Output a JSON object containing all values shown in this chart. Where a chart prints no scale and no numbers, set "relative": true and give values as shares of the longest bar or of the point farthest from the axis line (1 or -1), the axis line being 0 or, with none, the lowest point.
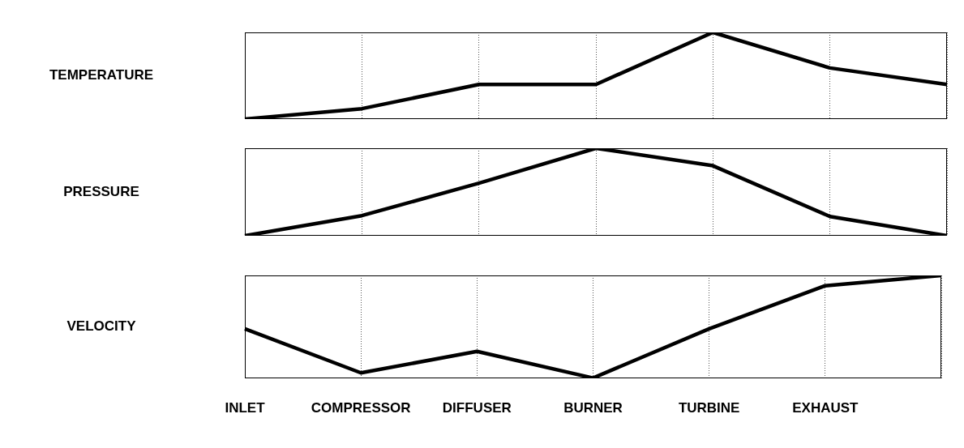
{
  "chart_data": [
    {
      "type": "line",
      "ylabel": "TEMPERATURE",
      "categories": [
        null,
        null,
        null,
        null,
        null,
        null,
        null
      ],
      "relative": true,
      "tick_labels": false,
      "grid": "x",
      "series": [
        {
          "color": "#000000",
          "values": [
            0,
            0.12,
            0.4,
            0.4,
            1,
            0.59,
            0.4
          ]
        }
      ]
    },
    {
      "type": "line",
      "ylabel": "PRESSURE",
      "categories": [
        null,
        null,
        null,
        null,
        null,
        null,
        null
      ],
      "relative": true,
      "tick_labels": false,
      "grid": "x",
      "series": [
        {
          "color": "#000000",
          "values": [
            0,
            0.23,
            0.6,
            1,
            0.8,
            0.22,
            0
          ]
        }
      ]
    },
    {
      "type": "line",
      "ylabel": "VELOCITY",
      "categories": [
        "INLET",
        "COMPRESSOR",
        "DIFFUSER",
        "BURNER",
        "TURBINE",
        "EXHAUST",
        null
      ],
      "relative": true,
      "tick_labels": "x",
      "grid": "x",
      "series": [
        {
          "color": "#000000",
          "values": [
            0.48,
            0.05,
            0.26,
            0,
            0.48,
            0.9,
            1
          ]
        }
      ]
    }
  ]
}
